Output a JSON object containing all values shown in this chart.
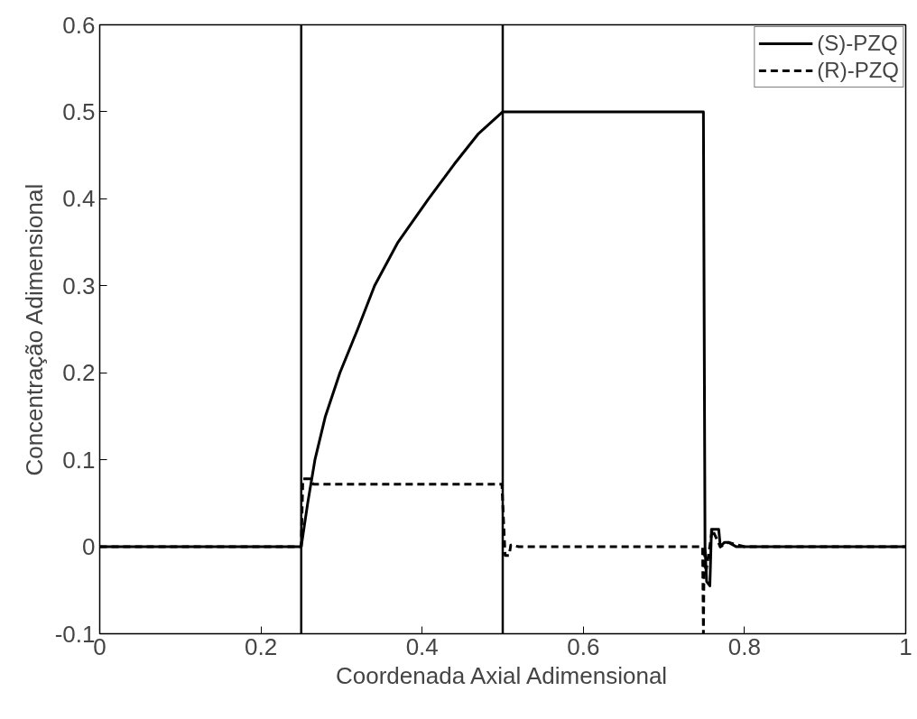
{
  "chart_data": {
    "type": "line",
    "xlabel": "Coordenada Axial Adimensional",
    "ylabel": "Concentração Adimensional",
    "xlim": [
      0,
      1
    ],
    "ylim": [
      -0.1,
      0.6
    ],
    "xticks": [
      0,
      0.2,
      0.4,
      0.6,
      0.8,
      1
    ],
    "yticks": [
      -0.1,
      0,
      0.1,
      0.2,
      0.3,
      0.4,
      0.5,
      0.6
    ],
    "grid": false,
    "legend": "top right",
    "marker": "none",
    "series": [
      {
        "name": "(S)-PZQ",
        "color": "#000000",
        "line_style": "solid",
        "x": [
          0,
          0.25,
          0.258,
          0.267,
          0.28,
          0.298,
          0.32,
          0.341,
          0.37,
          0.408,
          0.44,
          0.47,
          0.5,
          0.6,
          0.7,
          0.749,
          0.751,
          0.753,
          0.757,
          0.759,
          0.768,
          0.77,
          0.775,
          0.78,
          0.79,
          0.8,
          1
        ],
        "values": [
          0,
          0,
          0.05,
          0.1,
          0.15,
          0.2,
          0.25,
          0.3,
          0.35,
          0.4,
          0.44,
          0.475,
          0.5,
          0.5,
          0.5,
          0.5,
          0.0,
          -0.04,
          -0.045,
          0.02,
          0.02,
          0.0,
          0.005,
          0.005,
          0.0,
          0,
          0
        ]
      },
      {
        "name": "(R)-PZQ",
        "color": "#000000",
        "line_style": "dashed",
        "x": [
          0,
          0.25,
          0.252,
          0.262,
          0.265,
          0.3,
          0.4,
          0.499,
          0.501,
          0.503,
          0.508,
          0.51,
          0.52,
          0.6,
          0.7,
          0.748,
          0.749,
          0.75,
          0.752,
          0.76,
          0.77,
          0.78,
          0.8,
          1
        ],
        "values": [
          0,
          0,
          0.078,
          0.078,
          0.072,
          0.072,
          0.072,
          0.072,
          0.03,
          -0.01,
          -0.01,
          0.002,
          0,
          0,
          0,
          0,
          -0.1,
          0,
          -0.03,
          0.02,
          0,
          0.005,
          0,
          0
        ]
      }
    ],
    "ref_lines": [
      {
        "axis": "x",
        "value": 0.25,
        "color": "#000000",
        "line_style": "solid"
      },
      {
        "axis": "x",
        "value": 0.5,
        "color": "#000000",
        "line_style": "solid"
      }
    ]
  }
}
